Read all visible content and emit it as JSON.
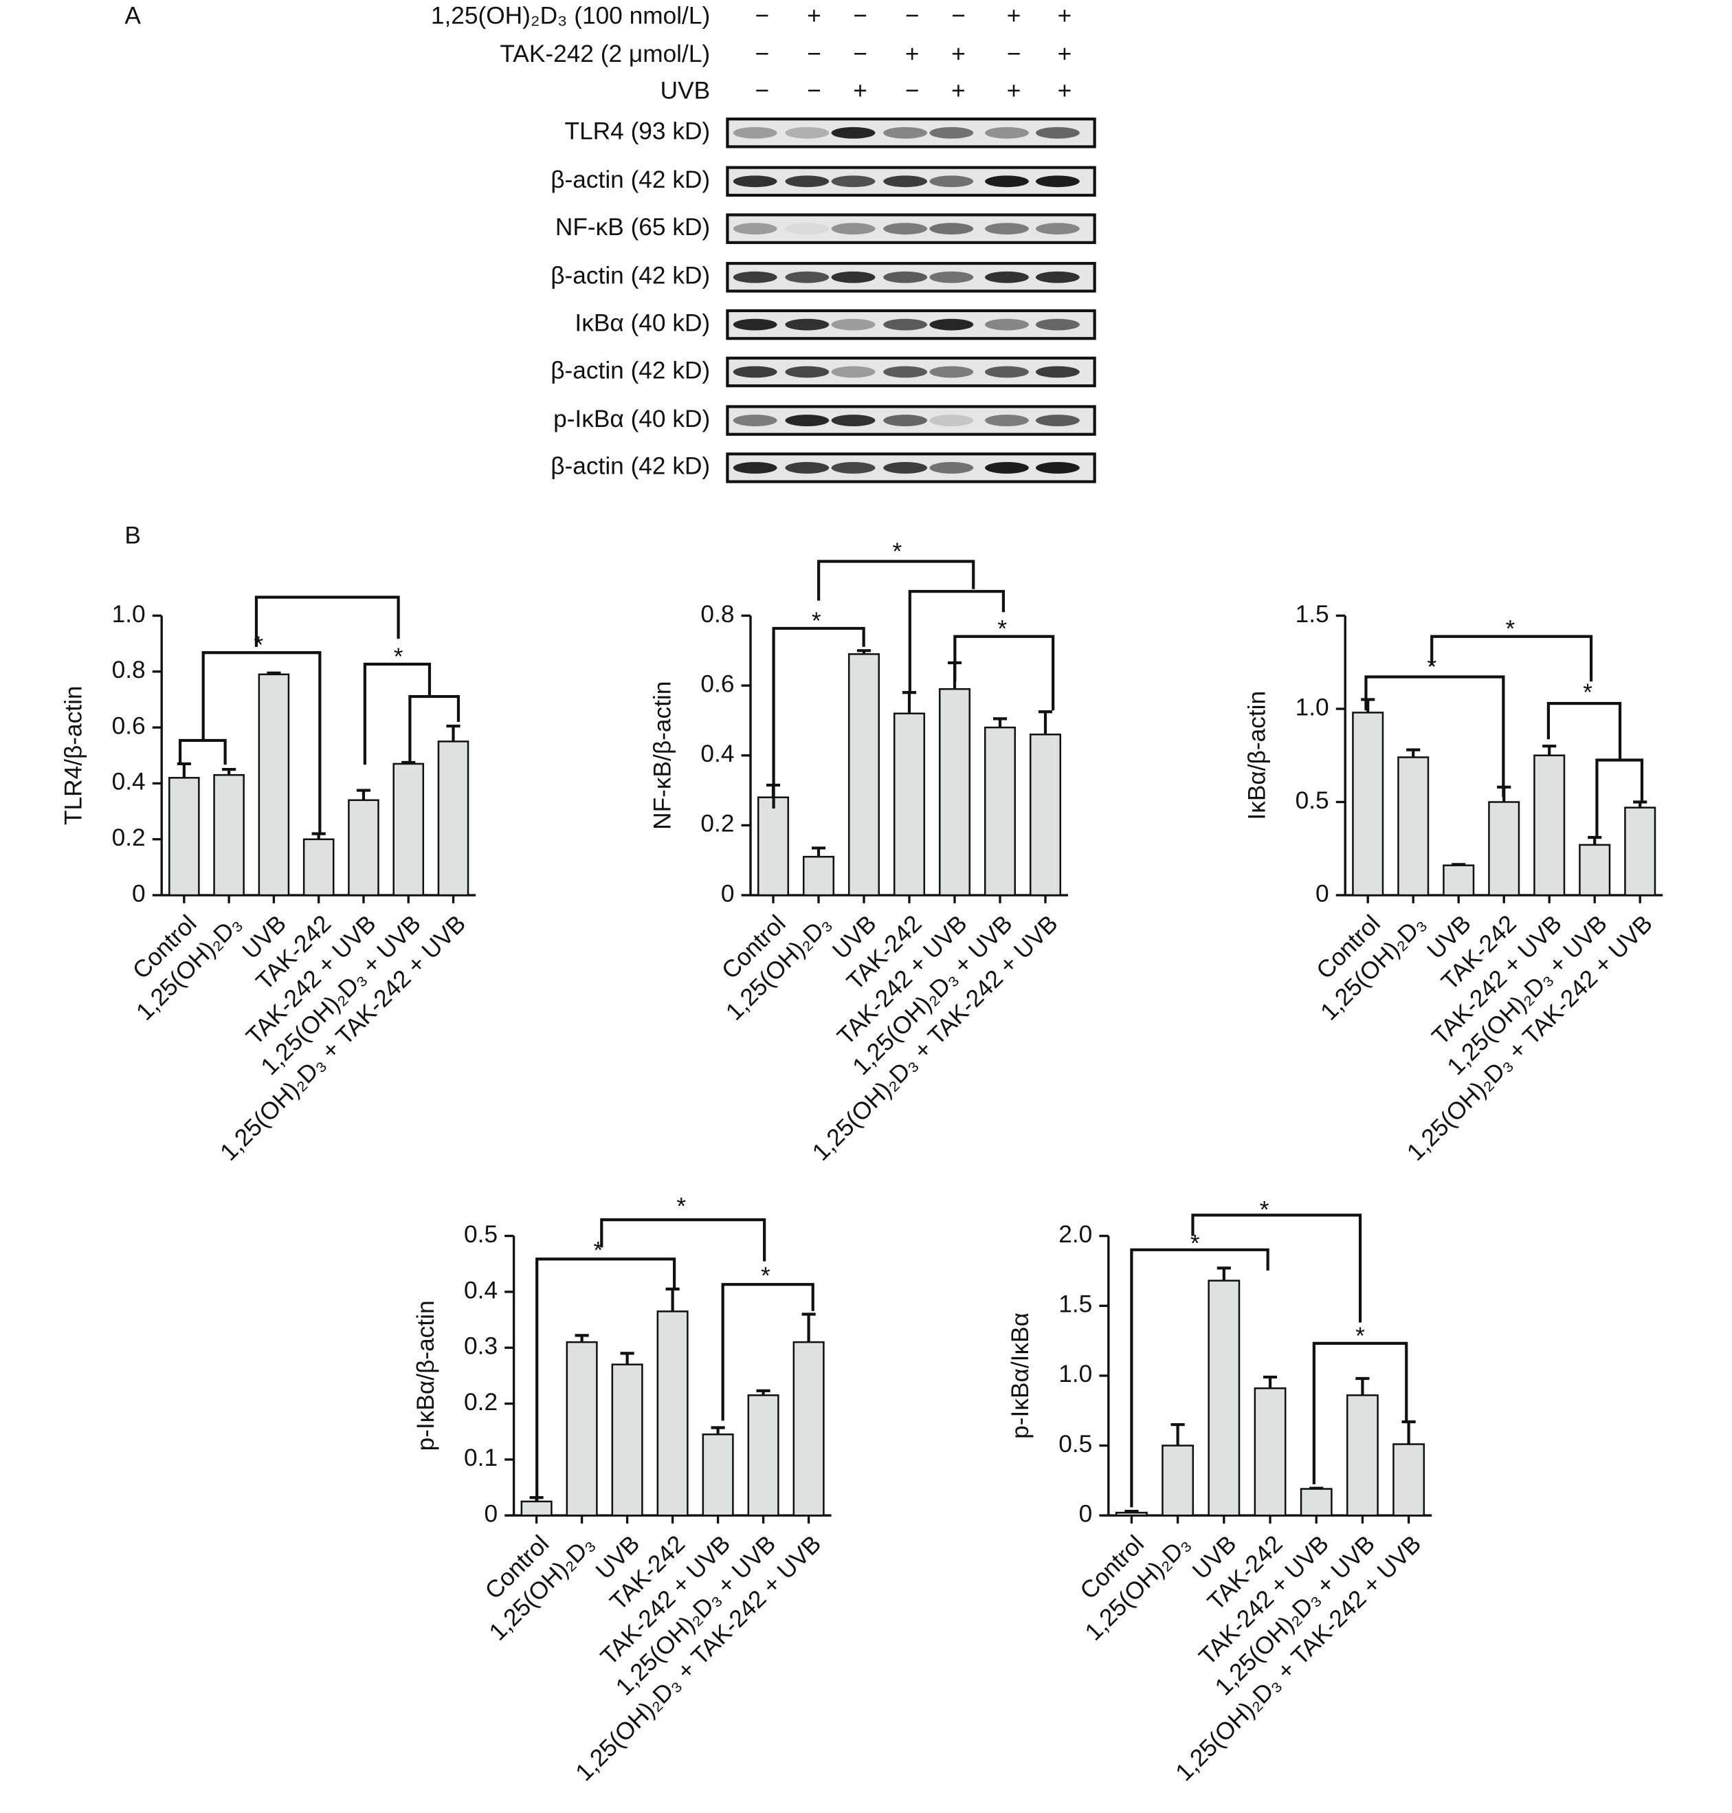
{
  "panel_a": {
    "label": "A",
    "conditions": [
      {
        "name": "1,25(OH)₂D₃ (100 nmol/L)",
        "signs": [
          "−",
          "+",
          "−",
          "−",
          "−",
          "+",
          "+"
        ]
      },
      {
        "name": "TAK-242 (2 μmol/L)",
        "signs": [
          "−",
          "−",
          "−",
          "+",
          "+",
          "−",
          "+"
        ]
      },
      {
        "name": "UVB",
        "signs": [
          "−",
          "−",
          "+",
          "−",
          "+",
          "+",
          "+"
        ]
      }
    ],
    "blots": [
      "TLR4 (93 kD)",
      "β-actin (42 kD)",
      "NF-κB (65 kD)",
      "β-actin (42 kD)",
      "IκBα (40 kD)",
      "β-actin (42 kD)",
      "p-IκBα (40 kD)",
      "β-actin (42 kD)"
    ]
  },
  "panel_b_label": "B",
  "chart_data": [
    {
      "type": "bar",
      "y_label": "TLR4/β-actin",
      "color": "#dde1df",
      "categories": [
        "Control",
        "1,25(OH)₂D₃",
        "UVB",
        "TAK-242",
        "TAK-242 + UVB",
        "1,25(OH)₂D₃ + UVB",
        "1,25(OH)₂D₃ + TAK-242 + UVB"
      ],
      "values": [
        0.42,
        0.43,
        0.79,
        0.2,
        0.34,
        0.47,
        0.55
      ],
      "errors": [
        0.05,
        0.02,
        0.005,
        0.02,
        0.035,
        0.005,
        0.055
      ],
      "ylim": [
        0,
        1
      ],
      "yticks": [
        0,
        0.2,
        0.4,
        0.6,
        0.8,
        {
          "value": 1,
          "label": "1.0"
        }
      ],
      "significance_labels": [
        "*",
        "*"
      ]
    },
    {
      "type": "bar",
      "y_label": "NF-κB/β-actin",
      "color": "#dde1df",
      "categories": [
        "Control",
        "1,25(OH)₂D₃",
        "UVB",
        "TAK-242",
        "TAK-242 + UVB",
        "1,25(OH)₂D₃ + UVB",
        "1,25(OH)₂D₃ + TAK-242 + UVB"
      ],
      "values": [
        0.28,
        0.11,
        0.69,
        0.52,
        0.59,
        0.48,
        0.46
      ],
      "errors": [
        0.035,
        0.025,
        0.01,
        0.06,
        0.075,
        0.025,
        0.065
      ],
      "ylim": [
        0,
        0.8
      ],
      "yticks": [
        0,
        0.2,
        0.4,
        0.6,
        0.8
      ],
      "significance_labels": [
        "*",
        "*",
        "*"
      ]
    },
    {
      "type": "bar",
      "y_label": "IκBα/β-actin",
      "color": "#dde1df",
      "categories": [
        "Control",
        "1,25(OH)₂D₃",
        "UVB",
        "TAK-242",
        "TAK-242 + UVB",
        "1,25(OH)₂D₃ + UVB",
        "1,25(OH)₂D₃ + TAK-242 + UVB"
      ],
      "values": [
        0.98,
        0.74,
        0.16,
        0.5,
        0.75,
        0.27,
        0.47
      ],
      "errors": [
        0.07,
        0.04,
        0.005,
        0.08,
        0.05,
        0.04,
        0.03
      ],
      "ylim": [
        0,
        1.5
      ],
      "yticks": [
        0,
        0.5,
        {
          "value": 1,
          "label": "1.0"
        },
        1.5
      ],
      "significance_labels": [
        "*",
        "*",
        "*"
      ]
    },
    {
      "type": "bar",
      "y_label": "p-IκBα/β-actin",
      "color": "#dde1df",
      "categories": [
        "Control",
        "1,25(OH)₂D₃",
        "UVB",
        "TAK-242",
        "TAK-242 + UVB",
        "1,25(OH)₂D₃ + UVB",
        "1,25(OH)₂D₃ + TAK-242 + UVB"
      ],
      "values": [
        0.025,
        0.31,
        0.27,
        0.365,
        0.145,
        0.215,
        0.31
      ],
      "errors": [
        0.007,
        0.012,
        0.02,
        0.04,
        0.012,
        0.008,
        0.05
      ],
      "ylim": [
        0,
        0.5
      ],
      "yticks": [
        0,
        0.1,
        0.2,
        0.3,
        0.4,
        0.5
      ],
      "significance_labels": [
        "*",
        "*",
        "*"
      ]
    },
    {
      "type": "bar",
      "y_label": "p-IκBα/IκBα",
      "color": "#dde1df",
      "categories": [
        "Control",
        "1,25(OH)₂D₃",
        "UVB",
        "TAK-242",
        "TAK-242 + UVB",
        "1,25(OH)₂D₃ + UVB",
        "1,25(OH)₂D₃ + TAK-242 + UVB"
      ],
      "values": [
        0.02,
        0.5,
        1.68,
        0.91,
        0.19,
        0.86,
        0.51
      ],
      "errors": [
        0.01,
        0.15,
        0.09,
        0.08,
        0.005,
        0.12,
        0.16
      ],
      "ylim": [
        0,
        2
      ],
      "yticks": [
        0,
        0.5,
        {
          "value": 1,
          "label": "1.0"
        },
        1.5,
        {
          "value": 2,
          "label": "2.0"
        }
      ],
      "significance_labels": [
        "*",
        "*",
        "*"
      ]
    }
  ]
}
